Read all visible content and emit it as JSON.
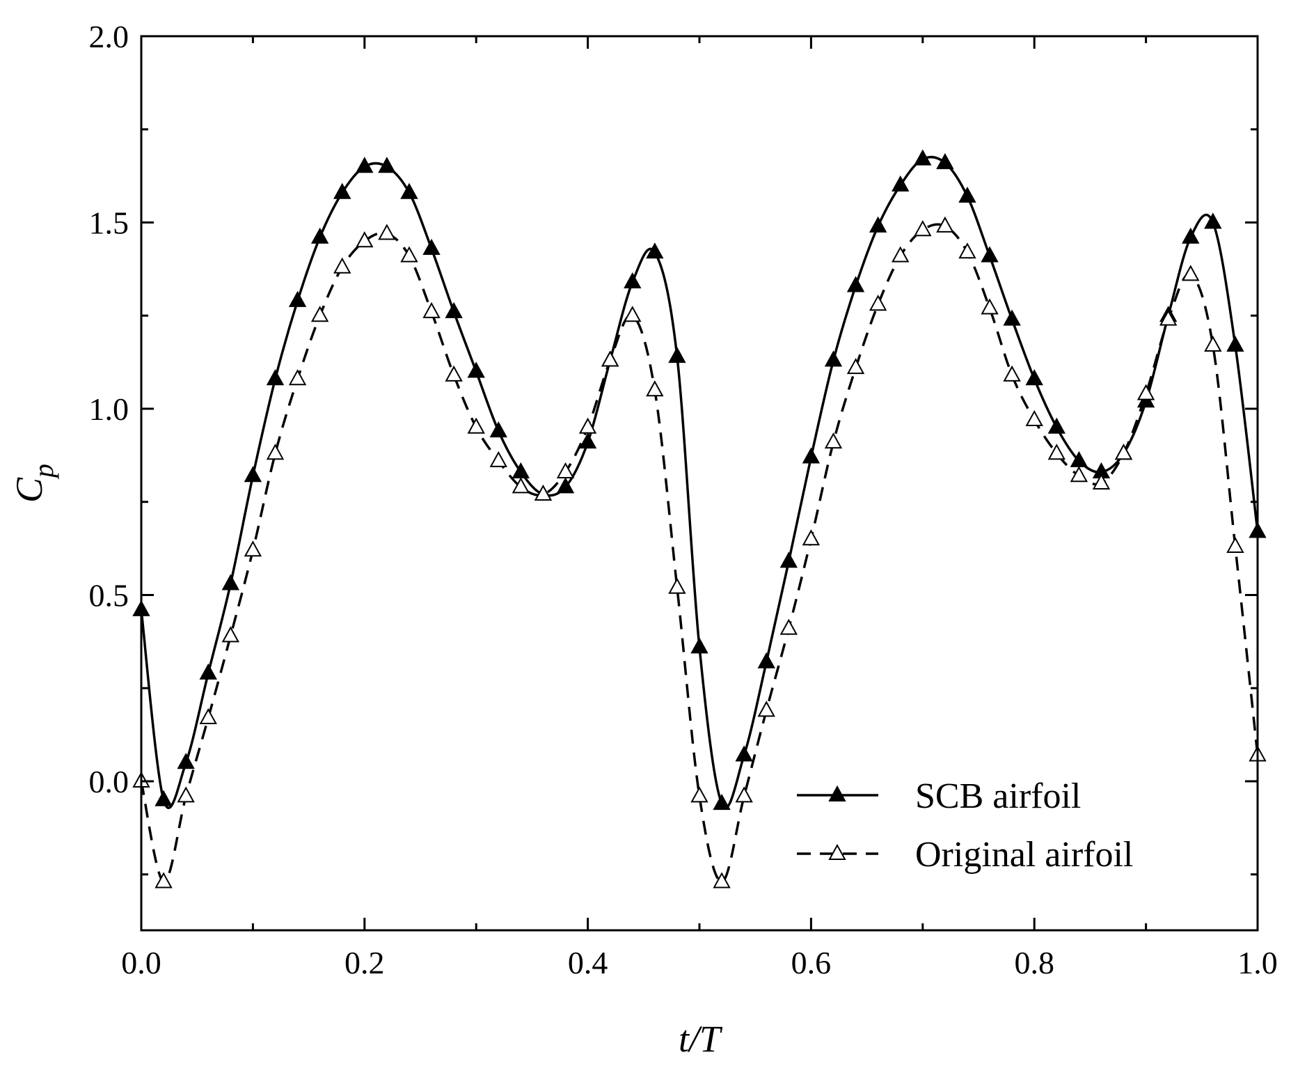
{
  "chart_data": {
    "type": "line",
    "title": "",
    "xlabel": "t/T",
    "ylabel": {
      "main": "C",
      "sub": "p"
    },
    "xlim": [
      0.0,
      1.0
    ],
    "ylim": [
      -0.4,
      2.0
    ],
    "xticks": [
      0.0,
      0.2,
      0.4,
      0.6,
      0.8,
      1.0
    ],
    "xtick_labels": [
      "0.0",
      "0.2",
      "0.4",
      "0.6",
      "0.8",
      "1.0"
    ],
    "yticks": [
      0.0,
      0.5,
      1.0,
      1.5,
      2.0
    ],
    "ytick_labels": [
      "0.0",
      "0.5",
      "1.0",
      "1.5",
      "2.0"
    ],
    "grid": false,
    "legend_position": "bottom-right",
    "series": [
      {
        "name": "SCB airfoil",
        "style": "solid",
        "marker": "filled-triangle",
        "color": "#000000",
        "x": [
          0.0,
          0.02,
          0.04,
          0.06,
          0.08,
          0.1,
          0.12,
          0.14,
          0.16,
          0.18,
          0.2,
          0.22,
          0.24,
          0.26,
          0.28,
          0.3,
          0.32,
          0.34,
          0.36,
          0.38,
          0.4,
          0.42,
          0.44,
          0.46,
          0.48,
          0.5,
          0.52,
          0.54,
          0.56,
          0.58,
          0.6,
          0.62,
          0.64,
          0.66,
          0.68,
          0.7,
          0.72,
          0.74,
          0.76,
          0.78,
          0.8,
          0.82,
          0.84,
          0.86,
          0.88,
          0.9,
          0.92,
          0.94,
          0.96,
          0.98,
          1.0
        ],
        "y": [
          0.46,
          -0.05,
          0.05,
          0.29,
          0.53,
          0.82,
          1.08,
          1.29,
          1.46,
          1.58,
          1.65,
          1.65,
          1.58,
          1.43,
          1.26,
          1.1,
          0.94,
          0.83,
          0.77,
          0.79,
          0.91,
          1.13,
          1.34,
          1.42,
          1.14,
          0.36,
          -0.06,
          0.07,
          0.32,
          0.59,
          0.87,
          1.13,
          1.33,
          1.49,
          1.6,
          1.67,
          1.66,
          1.57,
          1.41,
          1.24,
          1.08,
          0.95,
          0.86,
          0.83,
          0.88,
          1.02,
          1.25,
          1.46,
          1.5,
          1.17,
          0.67
        ]
      },
      {
        "name": "Original airfoil",
        "style": "dashed",
        "marker": "open-triangle",
        "color": "#000000",
        "x": [
          0.0,
          0.02,
          0.04,
          0.06,
          0.08,
          0.1,
          0.12,
          0.14,
          0.16,
          0.18,
          0.2,
          0.22,
          0.24,
          0.26,
          0.28,
          0.3,
          0.32,
          0.34,
          0.36,
          0.38,
          0.4,
          0.42,
          0.44,
          0.46,
          0.48,
          0.5,
          0.52,
          0.54,
          0.56,
          0.58,
          0.6,
          0.62,
          0.64,
          0.66,
          0.68,
          0.7,
          0.72,
          0.74,
          0.76,
          0.78,
          0.8,
          0.82,
          0.84,
          0.86,
          0.88,
          0.9,
          0.92,
          0.94,
          0.96,
          0.98,
          1.0
        ],
        "y": [
          0.0,
          -0.27,
          -0.04,
          0.17,
          0.39,
          0.62,
          0.88,
          1.08,
          1.25,
          1.38,
          1.45,
          1.47,
          1.41,
          1.26,
          1.09,
          0.95,
          0.86,
          0.79,
          0.77,
          0.83,
          0.95,
          1.13,
          1.25,
          1.05,
          0.52,
          -0.04,
          -0.27,
          -0.04,
          0.19,
          0.41,
          0.65,
          0.91,
          1.11,
          1.28,
          1.41,
          1.48,
          1.49,
          1.42,
          1.27,
          1.09,
          0.97,
          0.88,
          0.82,
          0.8,
          0.88,
          1.04,
          1.24,
          1.36,
          1.17,
          0.63,
          0.07
        ]
      }
    ]
  }
}
